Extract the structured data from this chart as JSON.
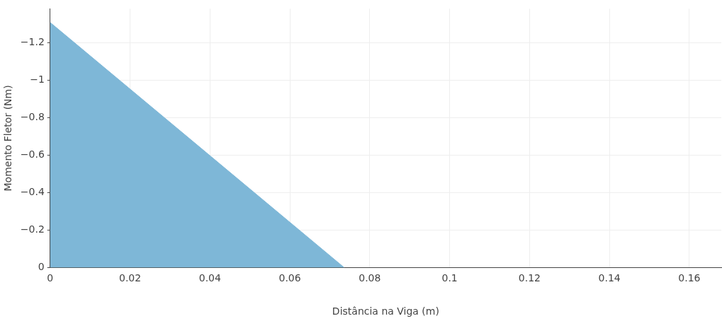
{
  "chart_data": {
    "type": "area",
    "xlabel": "Distância na Viga (m)",
    "ylabel": "Momento Fletor (Nm)",
    "series": [
      {
        "color": "#7eb7d7",
        "x": [
          0,
          0.0736
        ],
        "values": [
          -1.307,
          0
        ]
      }
    ],
    "xlim": [
      0,
      0.168
    ],
    "xticks": [
      0,
      0.02,
      0.04,
      0.06,
      0.08,
      0.1,
      0.12,
      0.14,
      0.16
    ],
    "ylim": [
      0,
      -1.38
    ],
    "yticks": [
      {
        "value": 0,
        "label": "0"
      },
      {
        "value": -0.2,
        "label": "−0.2"
      },
      {
        "value": -0.4,
        "label": "−0.4"
      },
      {
        "value": -0.6,
        "label": "−0.6"
      },
      {
        "value": -0.8,
        "label": "−0.8"
      },
      {
        "value": -1,
        "label": "−1"
      },
      {
        "value": -1.2,
        "label": "−1.2"
      }
    ],
    "grid": true,
    "legend": false
  }
}
